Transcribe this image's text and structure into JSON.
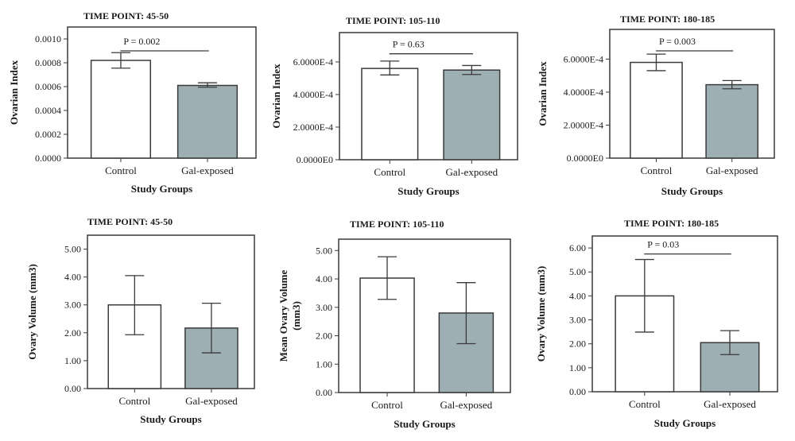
{
  "chart_data": [
    {
      "type": "bar",
      "title": "TIME POINT: 45-50",
      "xlabel": "Study Groups",
      "ylabel": "Ovarian Index",
      "categories": [
        "Control",
        "Gal-exposed"
      ],
      "values": [
        0.00082,
        0.00061
      ],
      "error_low": [
        0.000755,
        0.000595
      ],
      "error_high": [
        0.000885,
        0.000632
      ],
      "ylim": [
        0,
        0.0011
      ],
      "yticks": [
        0,
        0.0002,
        0.0004,
        0.0006,
        0.0008,
        0.001
      ],
      "ytick_labels": [
        "0.0000",
        "0.0002",
        "0.0004",
        "0.0006",
        "0.0008",
        "0.0010"
      ],
      "annotation": {
        "text": "P = 0.002",
        "y": 0.0009
      },
      "bar_colors": [
        "#ffffff",
        "#9eafb4"
      ]
    },
    {
      "type": "bar",
      "title": "TIME POINT: 105-110",
      "xlabel": "Study Groups",
      "ylabel": "Ovarian Index",
      "categories": [
        "Control",
        "Gal-exposed"
      ],
      "values": [
        0.00056,
        0.00055
      ],
      "error_low": [
        0.00052,
        0.000523
      ],
      "error_high": [
        0.000605,
        0.000578
      ],
      "ylim": [
        0,
        0.00078
      ],
      "yticks": [
        0,
        0.0002,
        0.0004,
        0.0006
      ],
      "ytick_labels": [
        "0.0000E0",
        "2.0000E-4",
        "4.0000E-4",
        "6.0000E-4"
      ],
      "annotation": {
        "text": "P = 0.63",
        "y": 0.00065
      },
      "bar_colors": [
        "#ffffff",
        "#9eafb4"
      ]
    },
    {
      "type": "bar",
      "title": "TIME POINT: 180-185",
      "xlabel": "Study Groups",
      "ylabel": "Ovarian Index",
      "categories": [
        "Control",
        "Gal-exposed"
      ],
      "values": [
        0.00058,
        0.000445
      ],
      "error_low": [
        0.00053,
        0.00042
      ],
      "error_high": [
        0.00063,
        0.00047
      ],
      "ylim": [
        0,
        0.00078
      ],
      "yticks": [
        0,
        0.0002,
        0.0004,
        0.0006
      ],
      "ytick_labels": [
        "0.0000E0",
        "2.0000E-4",
        "4.0000E-4",
        "6.0000E-4"
      ],
      "annotation": {
        "text": "P = 0.003",
        "y": 0.00065
      },
      "bar_colors": [
        "#ffffff",
        "#9eafb4"
      ]
    },
    {
      "type": "bar",
      "title": "TIME POINT: 45-50",
      "xlabel": "Study Groups",
      "ylabel": "Ovary Volume (mm3)",
      "categories": [
        "Control",
        "Gal-exposed"
      ],
      "values": [
        3.0,
        2.17
      ],
      "error_low": [
        1.93,
        1.28
      ],
      "error_high": [
        4.05,
        3.06
      ],
      "ylim": [
        0,
        5.5
      ],
      "yticks": [
        0,
        1,
        2,
        3,
        4,
        5
      ],
      "ytick_labels": [
        "0.00",
        "1.00",
        "2.00",
        "3.00",
        "4.00",
        "5.00"
      ],
      "bar_colors": [
        "#ffffff",
        "#9eafb4"
      ]
    },
    {
      "type": "bar",
      "title": "TIME POINT: 105-110",
      "xlabel": "Study Groups",
      "ylabel": "Mean Ovary Volume (mm3)",
      "categories": [
        "Control",
        "Gal-exposed"
      ],
      "values": [
        4.03,
        2.8
      ],
      "error_low": [
        3.28,
        1.72
      ],
      "error_high": [
        4.78,
        3.87
      ],
      "ylim": [
        0,
        5.4
      ],
      "yticks": [
        0,
        1,
        2,
        3,
        4,
        5
      ],
      "ytick_labels": [
        "0.00",
        "1.00",
        "2.00",
        "3.00",
        "4.00",
        "5.00"
      ],
      "bar_colors": [
        "#ffffff",
        "#9eafb4"
      ]
    },
    {
      "type": "bar",
      "title": "TIME POINT: 180-185",
      "xlabel": "Study Groups",
      "ylabel": "Ovary Volume (mm3)",
      "categories": [
        "Control",
        "Gal-exposed"
      ],
      "values": [
        4.0,
        2.05
      ],
      "error_low": [
        2.49,
        1.55
      ],
      "error_high": [
        5.52,
        2.55
      ],
      "ylim": [
        0,
        6.5
      ],
      "yticks": [
        0,
        1,
        2,
        3,
        4,
        5,
        6
      ],
      "ytick_labels": [
        "0.00",
        "1.00",
        "2.00",
        "3.00",
        "4.00",
        "5.00",
        "6.00"
      ],
      "annotation": {
        "text": "P = 0.03",
        "y": 5.75
      },
      "bar_colors": [
        "#ffffff",
        "#9eafb4"
      ]
    }
  ]
}
